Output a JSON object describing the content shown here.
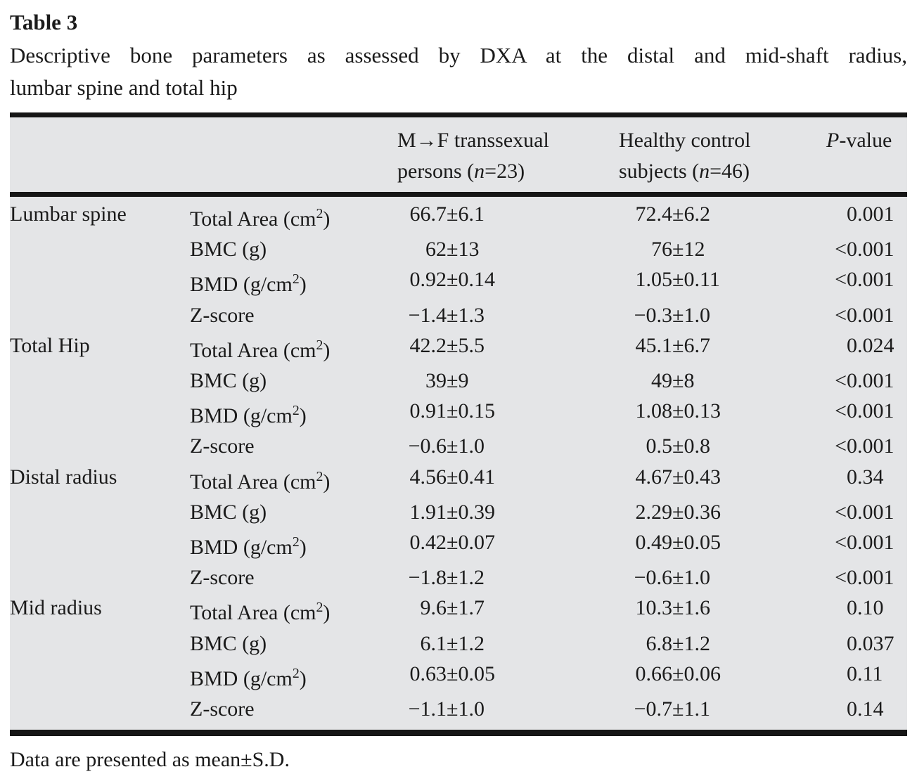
{
  "table_label": "Table 3",
  "caption_line1": "Descriptive bone parameters as assessed by DXA at the distal and mid-shaft radius,",
  "caption_line2": "lumbar spine and total hip",
  "footnote": "Data are presented as mean±S.D.",
  "columns": {
    "group1_line1": "M→F transsexual",
    "group1_line2": "persons (<i>n</i>=23)",
    "group2_line1": "Healthy control",
    "group2_line2": "subjects (<i>n</i>=46)",
    "pvalue": "<i>P</i>-value"
  },
  "colors": {
    "table_background": "#e4e5e7",
    "rule": "#161616",
    "text": "#1b1b1b"
  },
  "sections": [
    {
      "site": "Lumbar spine",
      "rows": [
        {
          "param": "Total Area (cm<sup>2</sup>)",
          "mf": "66.7±6.1",
          "hc": "72.4±6.2",
          "p": "0.001"
        },
        {
          "param": "BMC (g)",
          "mf": "62±13",
          "hc": "76±12",
          "p": "<0.001"
        },
        {
          "param": "BMD (g/cm<sup>2</sup>)",
          "mf": "0.92±0.14",
          "hc": "1.05±0.11",
          "p": "<0.001"
        },
        {
          "param": "Z-score",
          "mf": "−1.4±1.3",
          "hc": "−0.3±1.0",
          "p": "<0.001"
        }
      ]
    },
    {
      "site": "Total Hip",
      "rows": [
        {
          "param": "Total Area (cm<sup>2</sup>)",
          "mf": "42.2±5.5",
          "hc": "45.1±6.7",
          "p": "0.024"
        },
        {
          "param": "BMC (g)",
          "mf": "39±9",
          "hc": "49±8",
          "p": "<0.001"
        },
        {
          "param": "BMD (g/cm<sup>2</sup>)",
          "mf": "0.91±0.15",
          "hc": "1.08±0.13",
          "p": "<0.001"
        },
        {
          "param": "Z-score",
          "mf": "−0.6±1.0",
          "hc": "0.5±0.8",
          "p": "<0.001"
        }
      ]
    },
    {
      "site": "Distal radius",
      "rows": [
        {
          "param": "Total Area (cm<sup>2</sup>)",
          "mf": "4.56±0.41",
          "hc": "4.67±0.43",
          "p": "0.34"
        },
        {
          "param": "BMC (g)",
          "mf": "1.91±0.39",
          "hc": "2.29±0.36",
          "p": "<0.001"
        },
        {
          "param": "BMD (g/cm<sup>2</sup>)",
          "mf": "0.42±0.07",
          "hc": "0.49±0.05",
          "p": "<0.001"
        },
        {
          "param": "Z-score",
          "mf": "−1.8±1.2",
          "hc": "−0.6±1.0",
          "p": "<0.001"
        }
      ]
    },
    {
      "site": "Mid radius",
      "rows": [
        {
          "param": "Total Area (cm<sup>2</sup>)",
          "mf": "9.6±1.7",
          "hc": "10.3±1.6",
          "p": "0.10"
        },
        {
          "param": "BMC (g)",
          "mf": "6.1±1.2",
          "hc": "6.8±1.2",
          "p": "0.037"
        },
        {
          "param": "BMD (g/cm<sup>2</sup>)",
          "mf": "0.63±0.05",
          "hc": "0.66±0.06",
          "p": "0.11"
        },
        {
          "param": "Z-score",
          "mf": "−1.1±1.0",
          "hc": "−0.7±1.1",
          "p": "0.14"
        }
      ]
    }
  ]
}
